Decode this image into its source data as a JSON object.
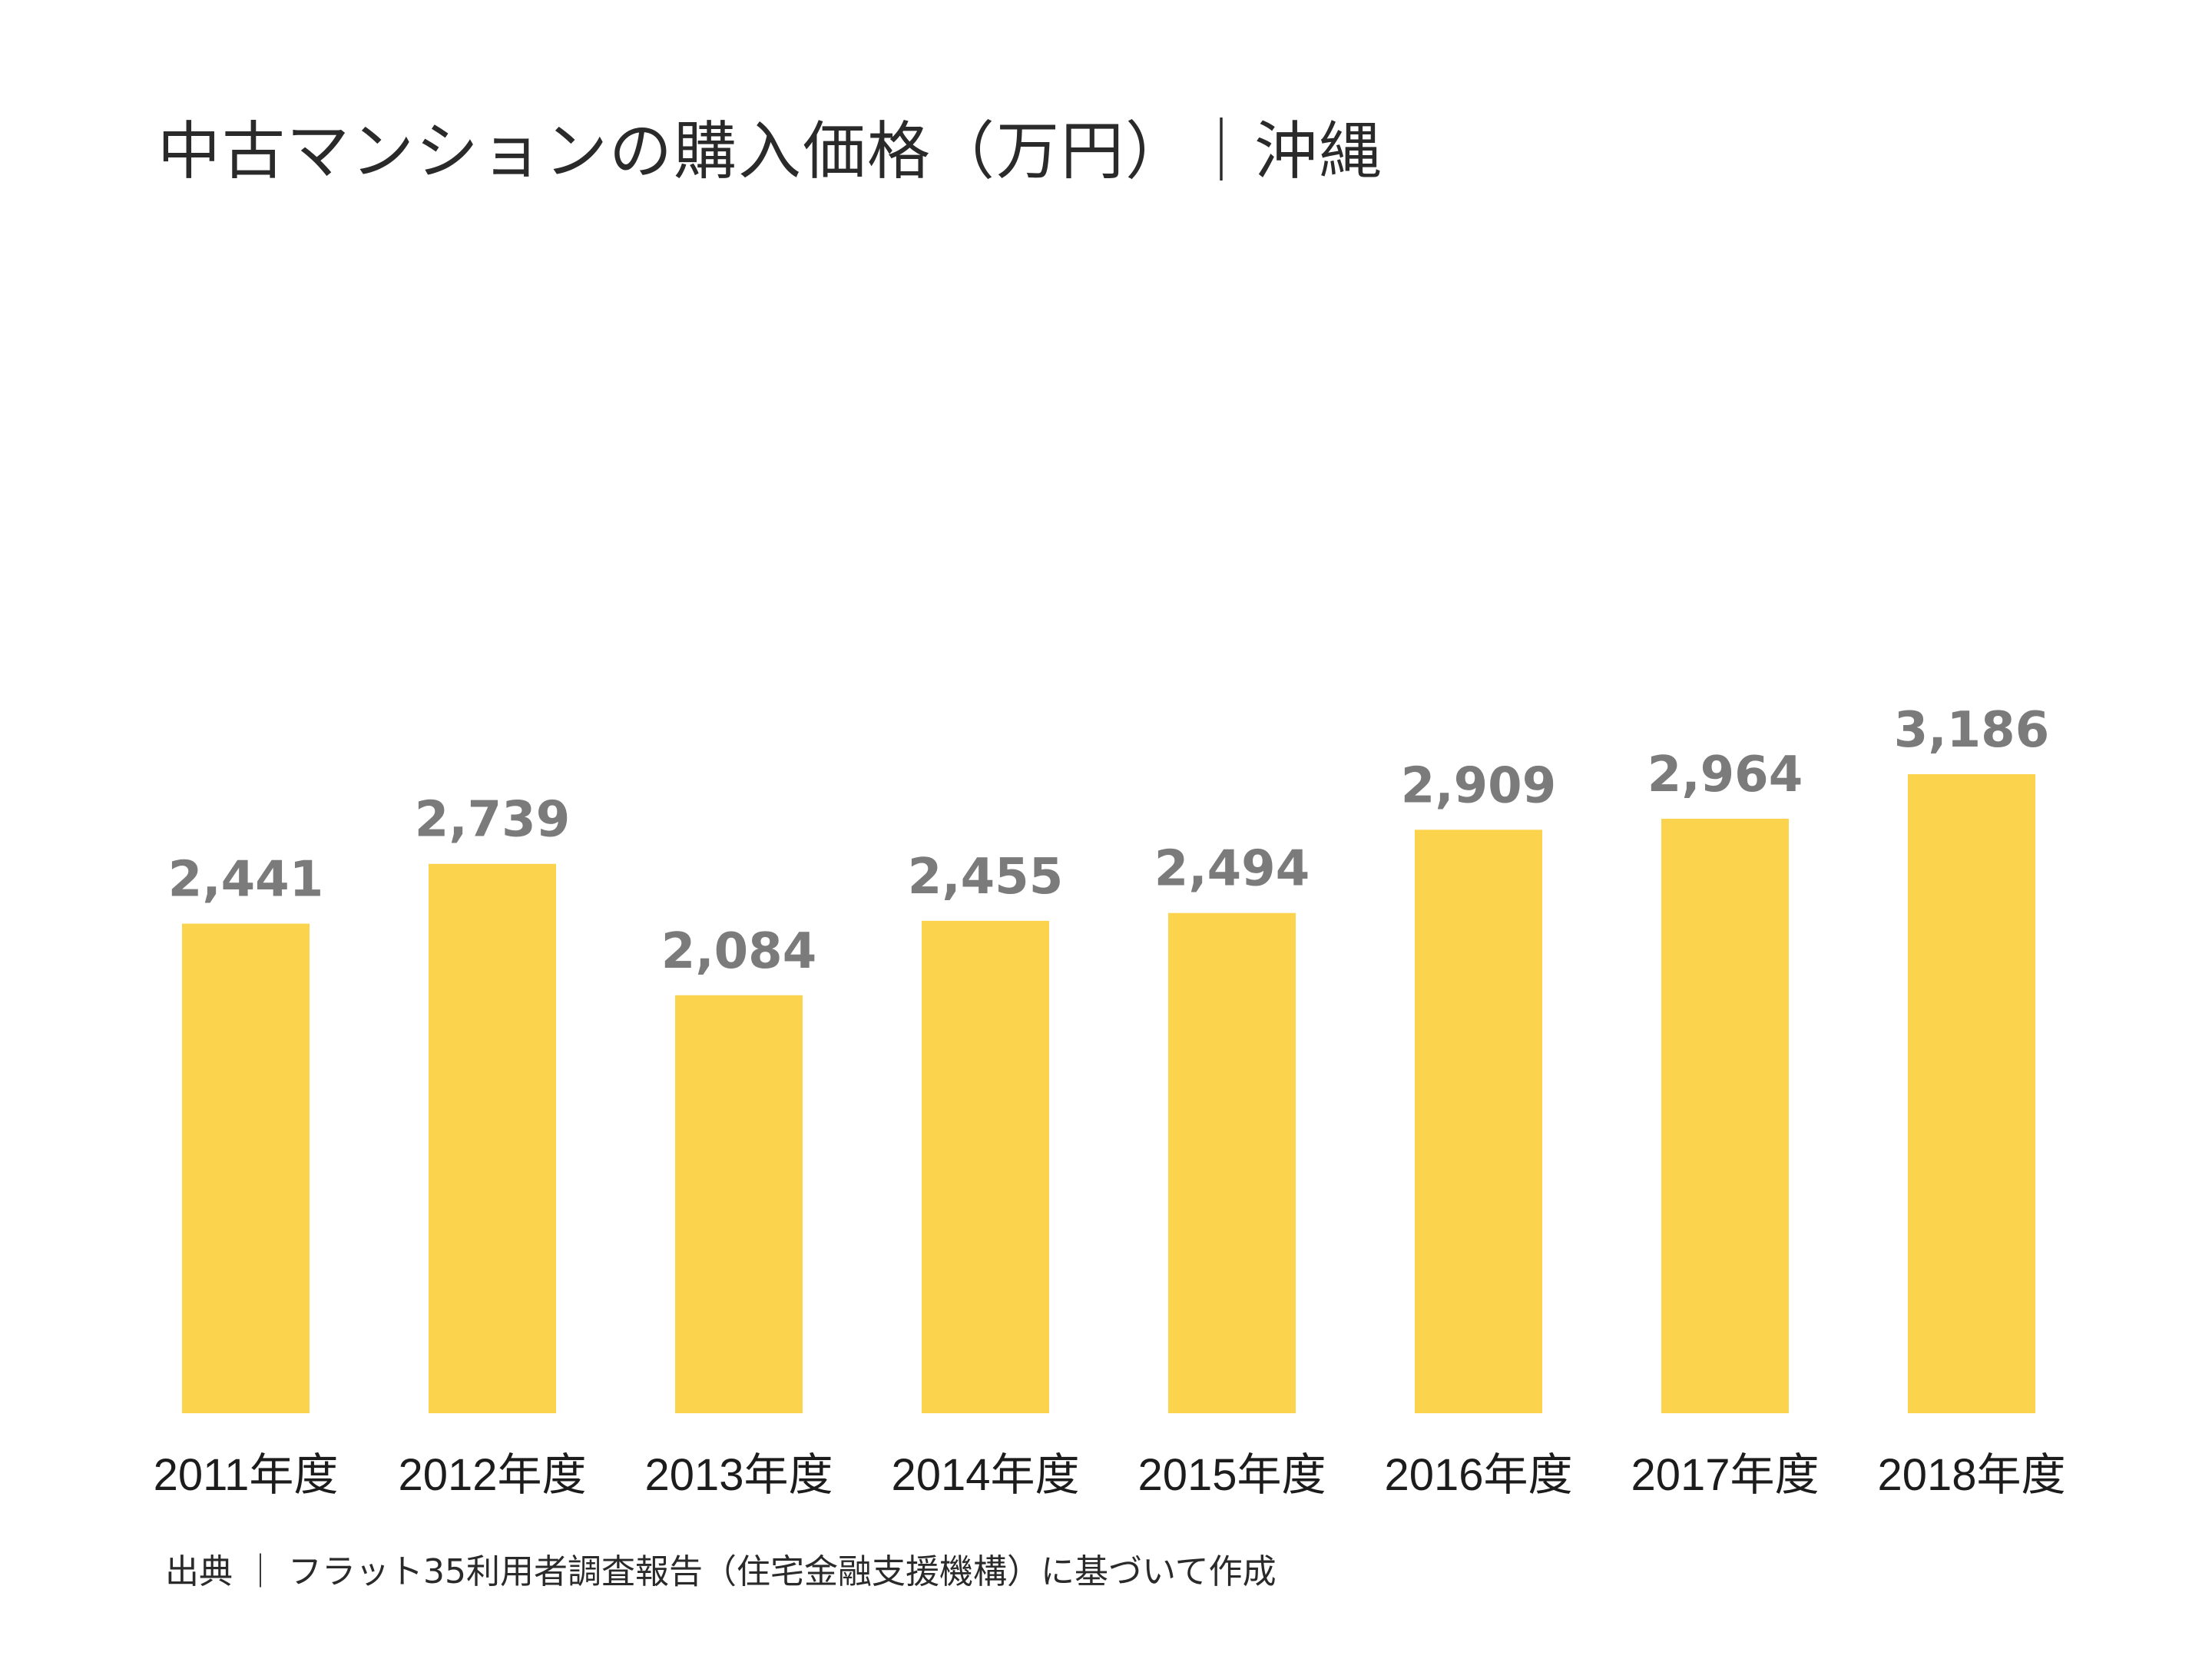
{
  "chart_data": {
    "type": "bar",
    "title": "中古マンションの購入価格（万円）｜沖縄",
    "categories": [
      "2011年度",
      "2012年度",
      "2013年度",
      "2014年度",
      "2015年度",
      "2016年度",
      "2017年度",
      "2018年度"
    ],
    "values": [
      2441,
      2739,
      2084,
      2455,
      2494,
      2909,
      2964,
      3186
    ],
    "value_labels": [
      "2,441",
      "2,739",
      "2,084",
      "2,455",
      "2,494",
      "2,909",
      "2,964",
      "3,186"
    ],
    "xlabel": "",
    "ylabel": "",
    "ylim": [
      0,
      3400
    ],
    "grid": false,
    "source": "出典 ｜ フラット35利用者調査報告（住宅金融支援機構）に基づいて作成"
  },
  "colors": {
    "bar": "#fcd34d",
    "value_label": "#7b7b7b",
    "text": "#1c1c1c"
  }
}
